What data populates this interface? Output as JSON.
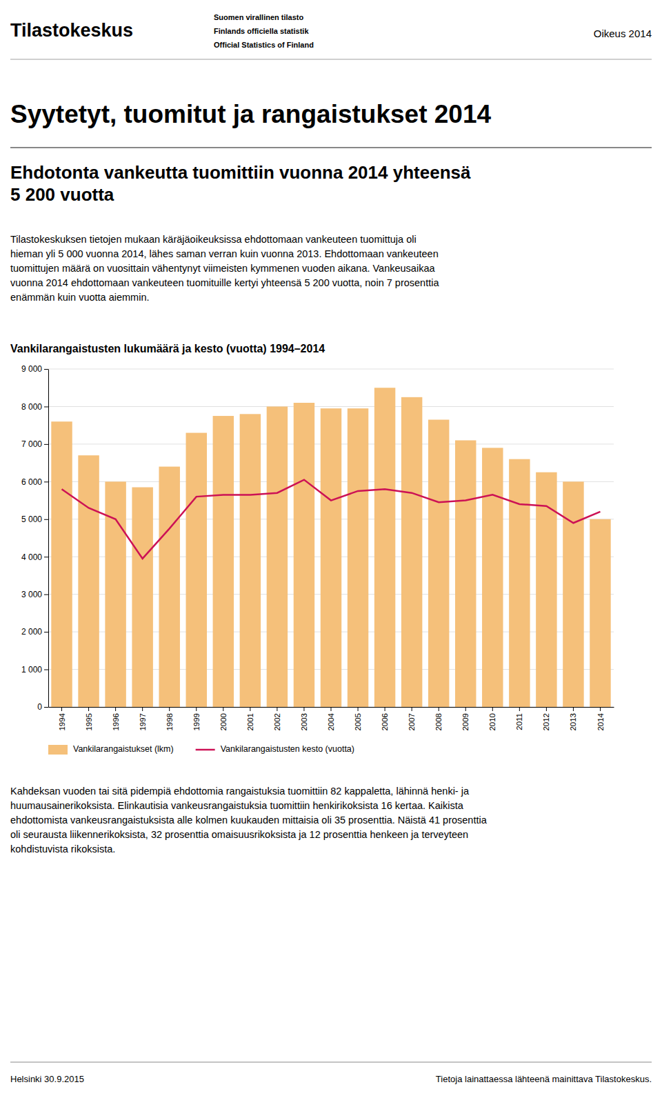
{
  "header": {
    "title": "Tilastokeskus",
    "lines": [
      "Suomen virallinen tilasto",
      "Finlands officiella statistik",
      "Official Statistics of Finland"
    ],
    "right": "Oikeus 2014"
  },
  "page_title": "Syytetyt, tuomitut ja rangaistukset 2014",
  "subtitle": "Ehdotonta vankeutta tuomittiin vuonna 2014 yhteensä\n5 200 vuotta",
  "body_text1": "Tilastokeskuksen tietojen mukaan käräjäoikeuksissa ehdottomaan vankeuteen tuomittuja oli\nhieman yli 5 000 vuonna 2014, lähes saman verran kuin vuonna 2013. Ehdottomaan vankeuteen\ntuomittujen määrä on vuosittain vähentynyt viimeisten kymmenen vuoden aikana. Vankeusaikaa\nvuonna 2014 ehdottomaan vankeuteen tuomituille kertyi yhteensä 5 200 vuotta, noin 7 prosenttia\nenämmän kuin vuotta aiemmin.",
  "chart_data": {
    "type": "bar",
    "title": "Vankilarangaistusten lukumäärä ja kesto (vuotta) 1994–2014",
    "categories": [
      1994,
      1995,
      1996,
      1997,
      1998,
      1999,
      2000,
      2001,
      2002,
      2003,
      2004,
      2005,
      2006,
      2007,
      2008,
      2009,
      2010,
      2011,
      2012,
      2013,
      2014
    ],
    "series": [
      {
        "name": "Vankilarangaistukset (lkm)",
        "type": "bar",
        "color": "#f5c07a",
        "values": [
          7600,
          6700,
          6000,
          5850,
          6400,
          7300,
          7750,
          7800,
          8000,
          8100,
          7950,
          7950,
          8500,
          8250,
          7650,
          7100,
          6900,
          6600,
          6250,
          6000,
          5000
        ]
      },
      {
        "name": "Vankilarangaistusten kesto (vuotta)",
        "type": "line",
        "color": "#cc1155",
        "values": [
          5800,
          5300,
          5000,
          3950,
          4750,
          5600,
          5650,
          5650,
          5700,
          6050,
          5500,
          5750,
          5800,
          5700,
          5450,
          5500,
          5650,
          5400,
          5350,
          4900,
          5200
        ]
      }
    ],
    "ylim": [
      0,
      9000
    ],
    "yticks": [
      0,
      {
        "value": 1000,
        "label": "1 000"
      },
      {
        "value": 2000,
        "label": "2 000"
      },
      {
        "value": 3000,
        "label": "3 000"
      },
      {
        "value": 4000,
        "label": "4 000"
      },
      {
        "value": 5000,
        "label": "5 000"
      },
      {
        "value": 6000,
        "label": "6 000"
      },
      {
        "value": 7000,
        "label": "7 000"
      },
      {
        "value": 8000,
        "label": "8 000"
      },
      {
        "value": 9000,
        "label": "9 000"
      }
    ],
    "grid": true,
    "legend": "bottom"
  },
  "body_text2": "Kahdeksan vuoden tai sitä pidempiä ehdottomia rangaistuksia tuomittiin 82 kappaletta, lähinnä henki- ja\nhuumausainerikoksista. Elinkautisia vankeusrangaistuksia tuomittiin henkirikoksista 16 kertaa. Kaikista\nehdottomista vankeusrangaistuksista alle kolmen kuukauden mittaisia oli 35 prosenttia. Näistä 41 prosenttia\noli seurausta liikennerikoksista, 32 prosenttia omaisuusrikoksista ja 12 prosenttia henkeen ja terveyteen\nkohdistuvista rikoksista.",
  "footer": {
    "left": "Helsinki 30.9.2015",
    "right": "Tietoja lainattaessa lähteenä mainittava Tilastokeskus."
  }
}
